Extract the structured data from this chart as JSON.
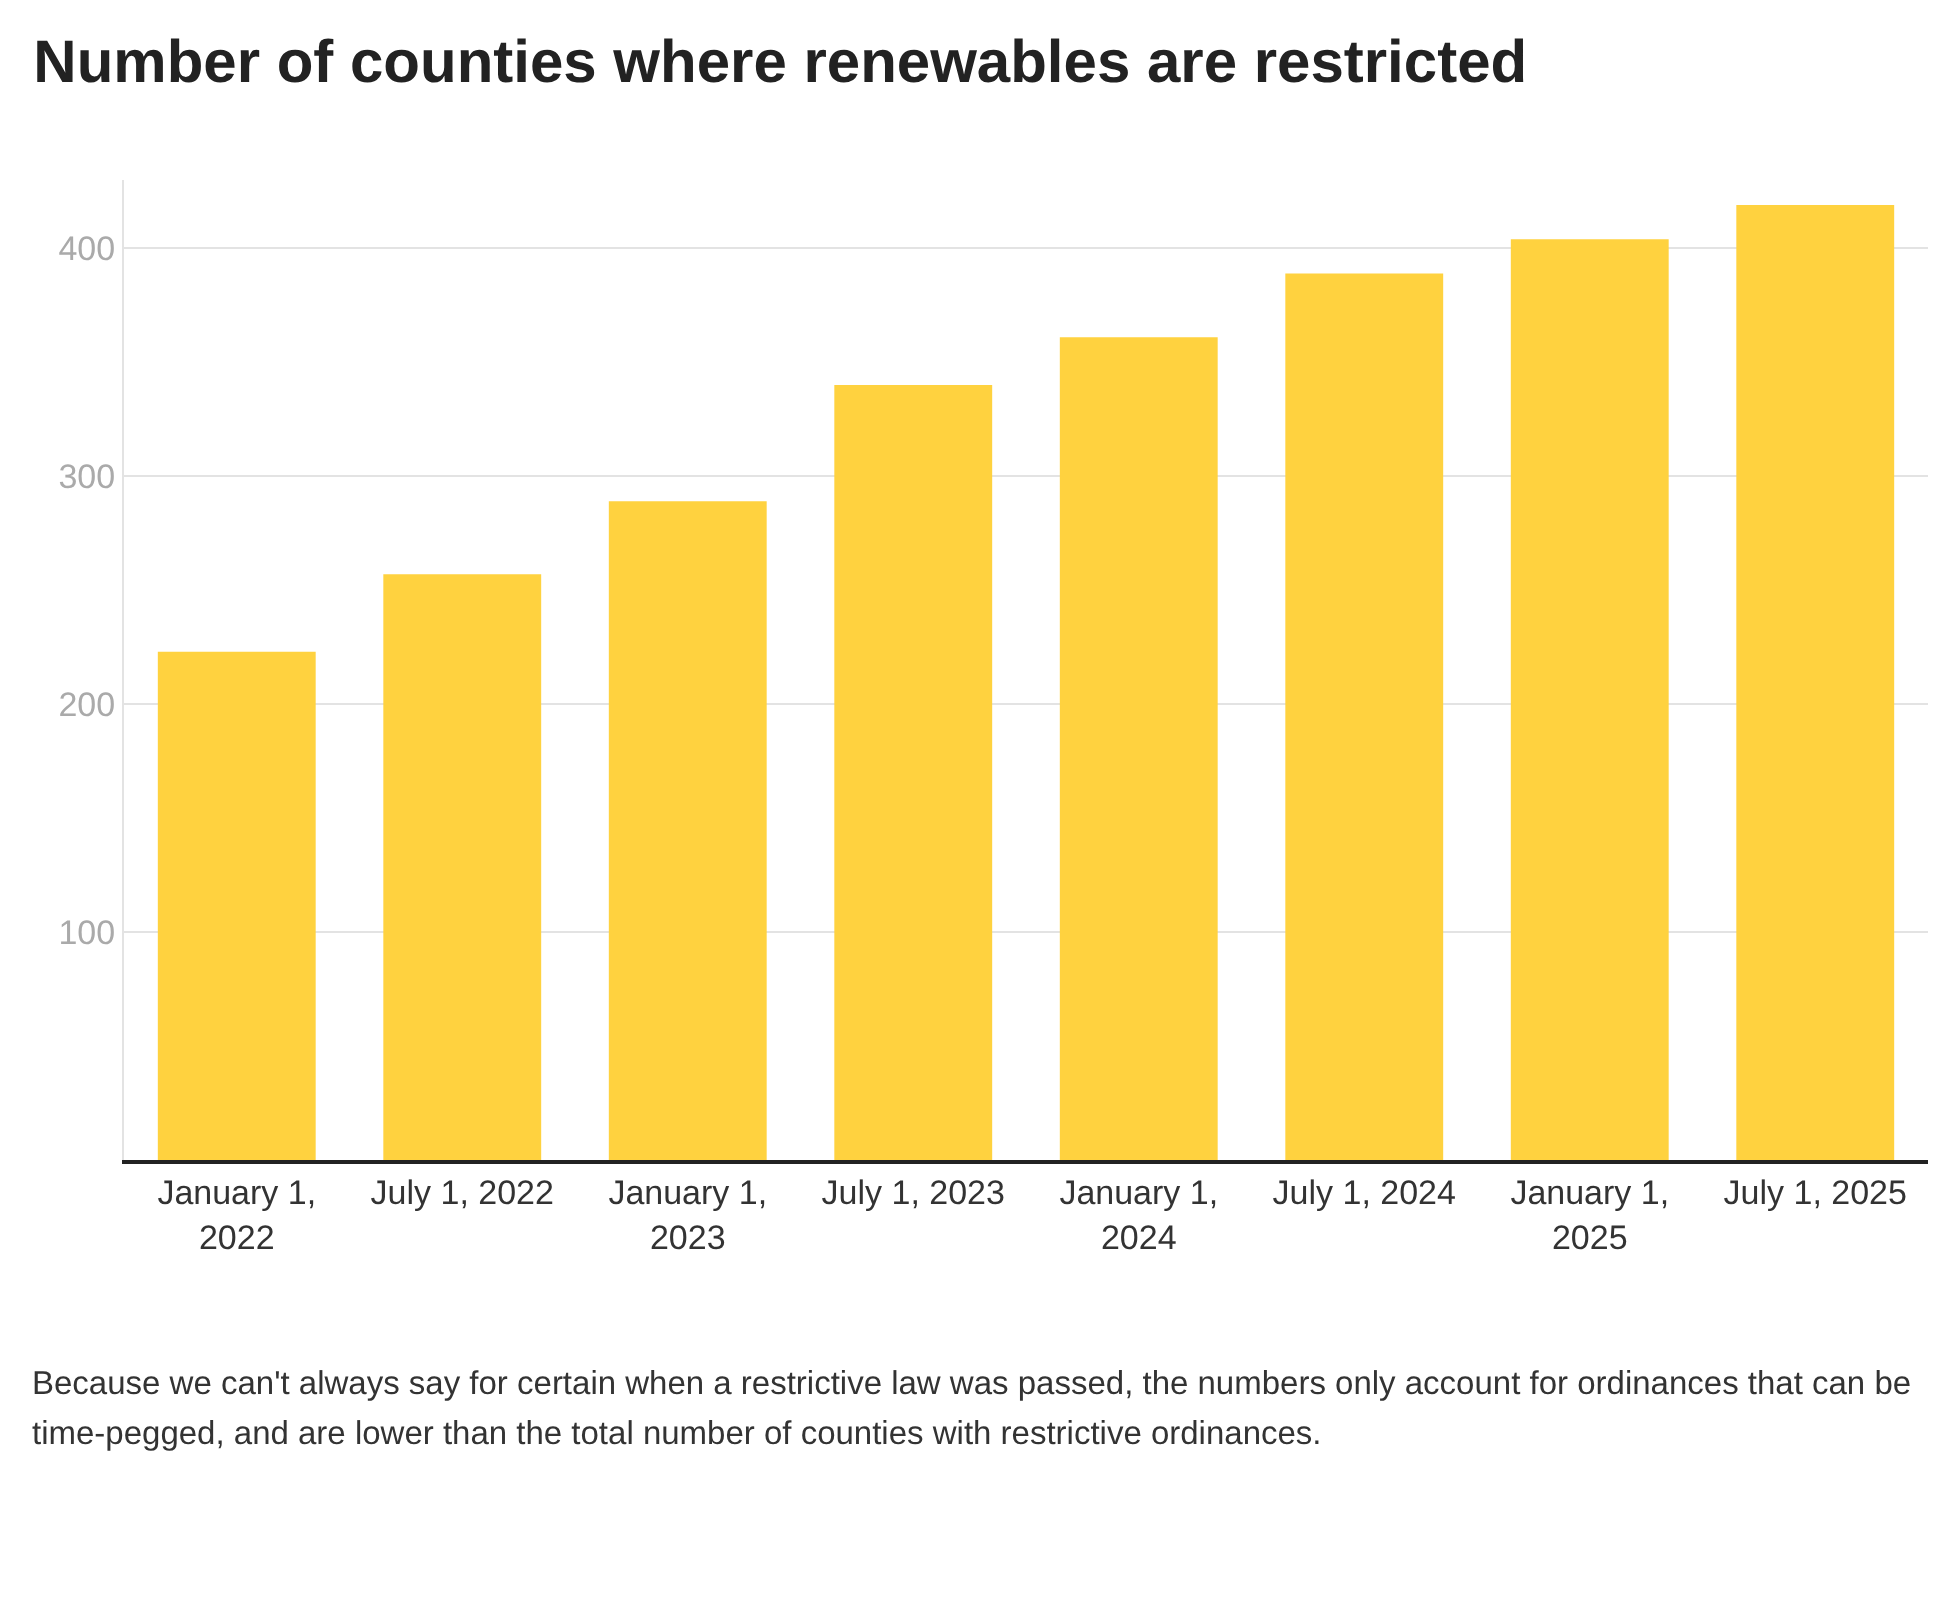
{
  "chart_data": {
    "type": "bar",
    "title": "Number of counties where renewables are restricted",
    "categories": [
      "January 1, 2022",
      "July 1, 2022",
      "January 1, 2023",
      "July 1, 2023",
      "January 1, 2024",
      "July 1, 2024",
      "January 1, 2025",
      "July 1, 2025"
    ],
    "values": [
      223,
      257,
      289,
      340,
      361,
      389,
      404,
      419
    ],
    "color": "#ffd23f",
    "ylim": [
      0,
      430
    ],
    "yticks": [
      100,
      200,
      300,
      400
    ],
    "grid": "y",
    "annotations": [
      "Because we can't always say for certain when a restrictive law was passed, the numbers only account for ordinances that can be time-pegged, and are lower than the total number of counties with restrictive ordinances."
    ]
  }
}
